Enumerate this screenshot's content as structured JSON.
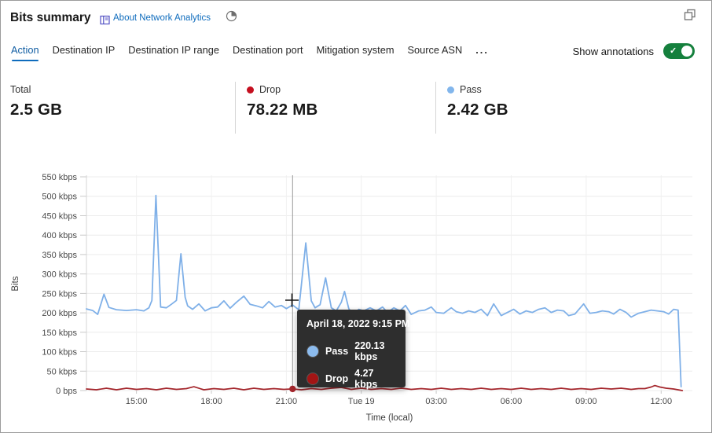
{
  "header": {
    "title": "Bits summary",
    "about_link": "About Network Analytics",
    "icons": [
      "book-icon",
      "time-range-pie-icon",
      "restore-window-icon"
    ]
  },
  "tabs": {
    "items": [
      {
        "label": "Action",
        "active": true
      },
      {
        "label": "Destination IP",
        "active": false
      },
      {
        "label": "Destination IP range",
        "active": false
      },
      {
        "label": "Destination port",
        "active": false
      },
      {
        "label": "Mitigation system",
        "active": false
      },
      {
        "label": "Source ASN",
        "active": false
      }
    ],
    "more_label": "...",
    "show_annotations_label": "Show annotations",
    "show_annotations_on": true,
    "active_color": "#0f6cbd",
    "toggle_color": "#15803d"
  },
  "stats": {
    "cards": [
      {
        "label": "Total",
        "value": "2.5 GB",
        "dot": null
      },
      {
        "label": "Drop",
        "value": "78.22 MB",
        "dot": "#c50f1f"
      },
      {
        "label": "Pass",
        "value": "2.42 GB",
        "dot": "#82b6ec"
      }
    ]
  },
  "tooltip": {
    "title": "April 18, 2022 9:15 PM",
    "rows": [
      {
        "name": "Pass",
        "value": "220.13 kbps",
        "color": "#8cbbee"
      },
      {
        "name": "Drop",
        "value": "4.27 kbps",
        "color": "#a31515"
      }
    ]
  },
  "chart_data": {
    "type": "line",
    "title": "Bits summary",
    "xlabel": "Time (local)",
    "ylabel": "Bits",
    "x_unit": "hours since Apr 18 2022 00:00 local",
    "y_unit": "kbps",
    "xlim": [
      13.0,
      37.25
    ],
    "ylim": [
      0,
      550
    ],
    "grid": true,
    "legend": "shown as stat cards above chart",
    "yticks": [
      {
        "v": 0,
        "label": "0 bps"
      },
      {
        "v": 50,
        "label": "50 kbps"
      },
      {
        "v": 100,
        "label": "100 kbps"
      },
      {
        "v": 150,
        "label": "150 kbps"
      },
      {
        "v": 200,
        "label": "200 kbps"
      },
      {
        "v": 250,
        "label": "250 kbps"
      },
      {
        "v": 300,
        "label": "300 kbps"
      },
      {
        "v": 350,
        "label": "350 kbps"
      },
      {
        "v": 400,
        "label": "400 kbps"
      },
      {
        "v": 450,
        "label": "450 kbps"
      },
      {
        "v": 500,
        "label": "500 kbps"
      },
      {
        "v": 550,
        "label": "550 kbps"
      }
    ],
    "xticks": [
      {
        "t": 15,
        "label": "15:00"
      },
      {
        "t": 18,
        "label": "18:00"
      },
      {
        "t": 21,
        "label": "21:00"
      },
      {
        "t": 24,
        "label": "Tue 19"
      },
      {
        "t": 27,
        "label": "03:00"
      },
      {
        "t": 30,
        "label": "06:00"
      },
      {
        "t": 33,
        "label": "09:00"
      },
      {
        "t": 36,
        "label": "12:00"
      }
    ],
    "selected_point": {
      "t": 21.25,
      "time_label": "April 18, 2022 9:15 PM",
      "pass_kbps": 220.13,
      "drop_kbps": 4.27
    },
    "series": [
      {
        "name": "Pass",
        "color": "#7fb0e8",
        "points": [
          [
            13.0,
            210
          ],
          [
            13.25,
            206
          ],
          [
            13.45,
            196
          ],
          [
            13.7,
            248
          ],
          [
            13.9,
            214
          ],
          [
            14.2,
            208
          ],
          [
            14.6,
            206
          ],
          [
            15.0,
            208
          ],
          [
            15.3,
            205
          ],
          [
            15.5,
            213
          ],
          [
            15.62,
            232
          ],
          [
            15.78,
            502
          ],
          [
            15.97,
            215
          ],
          [
            16.2,
            213
          ],
          [
            16.4,
            222
          ],
          [
            16.6,
            232
          ],
          [
            16.78,
            352
          ],
          [
            16.95,
            240
          ],
          [
            17.05,
            218
          ],
          [
            17.25,
            209
          ],
          [
            17.5,
            223
          ],
          [
            17.75,
            205
          ],
          [
            18.0,
            213
          ],
          [
            18.25,
            215
          ],
          [
            18.5,
            231
          ],
          [
            18.75,
            212
          ],
          [
            19.0,
            227
          ],
          [
            19.3,
            243
          ],
          [
            19.55,
            222
          ],
          [
            19.8,
            218
          ],
          [
            20.05,
            213
          ],
          [
            20.3,
            229
          ],
          [
            20.55,
            215
          ],
          [
            20.8,
            219
          ],
          [
            21.0,
            211
          ],
          [
            21.25,
            220.13
          ],
          [
            21.5,
            208
          ],
          [
            21.78,
            380
          ],
          [
            22.0,
            231
          ],
          [
            22.15,
            213
          ],
          [
            22.35,
            221
          ],
          [
            22.57,
            290
          ],
          [
            22.8,
            213
          ],
          [
            23.0,
            205
          ],
          [
            23.2,
            227
          ],
          [
            23.33,
            255
          ],
          [
            23.5,
            211
          ],
          [
            23.67,
            196
          ],
          [
            23.9,
            209
          ],
          [
            24.1,
            205
          ],
          [
            24.35,
            213
          ],
          [
            24.6,
            205
          ],
          [
            24.85,
            215
          ],
          [
            25.05,
            201
          ],
          [
            25.3,
            213
          ],
          [
            25.55,
            205
          ],
          [
            25.77,
            219
          ],
          [
            26.0,
            196
          ],
          [
            26.3,
            205
          ],
          [
            26.55,
            207
          ],
          [
            26.8,
            215
          ],
          [
            27.0,
            201
          ],
          [
            27.3,
            199
          ],
          [
            27.6,
            213
          ],
          [
            27.8,
            203
          ],
          [
            28.05,
            199
          ],
          [
            28.3,
            205
          ],
          [
            28.55,
            201
          ],
          [
            28.8,
            209
          ],
          [
            29.05,
            193
          ],
          [
            29.3,
            223
          ],
          [
            29.6,
            193
          ],
          [
            29.85,
            201
          ],
          [
            30.1,
            209
          ],
          [
            30.35,
            197
          ],
          [
            30.6,
            205
          ],
          [
            30.85,
            201
          ],
          [
            31.1,
            209
          ],
          [
            31.35,
            213
          ],
          [
            31.6,
            201
          ],
          [
            31.85,
            207
          ],
          [
            32.1,
            205
          ],
          [
            32.3,
            193
          ],
          [
            32.55,
            197
          ],
          [
            32.9,
            223
          ],
          [
            33.15,
            199
          ],
          [
            33.4,
            201
          ],
          [
            33.65,
            205
          ],
          [
            33.9,
            203
          ],
          [
            34.1,
            197
          ],
          [
            34.35,
            209
          ],
          [
            34.6,
            201
          ],
          [
            34.8,
            189
          ],
          [
            35.1,
            199
          ],
          [
            35.35,
            203
          ],
          [
            35.6,
            207
          ],
          [
            35.85,
            205
          ],
          [
            36.1,
            203
          ],
          [
            36.3,
            197
          ],
          [
            36.5,
            209
          ],
          [
            36.68,
            207
          ],
          [
            36.8,
            10
          ]
        ]
      },
      {
        "name": "Drop",
        "color": "#a4262c",
        "points": [
          [
            13.0,
            4
          ],
          [
            13.4,
            2
          ],
          [
            13.8,
            6
          ],
          [
            14.2,
            2
          ],
          [
            14.6,
            6
          ],
          [
            15.0,
            3
          ],
          [
            15.4,
            5
          ],
          [
            15.8,
            2
          ],
          [
            16.2,
            6
          ],
          [
            16.6,
            3
          ],
          [
            17.0,
            5
          ],
          [
            17.3,
            10
          ],
          [
            17.7,
            2
          ],
          [
            18.1,
            5
          ],
          [
            18.5,
            3
          ],
          [
            18.9,
            6
          ],
          [
            19.3,
            2
          ],
          [
            19.7,
            6
          ],
          [
            20.1,
            3
          ],
          [
            20.5,
            5
          ],
          [
            20.9,
            3
          ],
          [
            21.25,
            4.27
          ],
          [
            21.6,
            2
          ],
          [
            22.0,
            5
          ],
          [
            22.4,
            3
          ],
          [
            22.8,
            6
          ],
          [
            23.2,
            8
          ],
          [
            23.6,
            3
          ],
          [
            24.0,
            6
          ],
          [
            24.4,
            3
          ],
          [
            24.8,
            5
          ],
          [
            25.2,
            3
          ],
          [
            25.6,
            6
          ],
          [
            26.0,
            3
          ],
          [
            26.4,
            5
          ],
          [
            26.8,
            3
          ],
          [
            27.2,
            6
          ],
          [
            27.6,
            3
          ],
          [
            28.0,
            5
          ],
          [
            28.4,
            3
          ],
          [
            28.8,
            6
          ],
          [
            29.2,
            3
          ],
          [
            29.6,
            5
          ],
          [
            30.0,
            3
          ],
          [
            30.4,
            6
          ],
          [
            30.8,
            3
          ],
          [
            31.2,
            5
          ],
          [
            31.6,
            3
          ],
          [
            32.0,
            6
          ],
          [
            32.4,
            3
          ],
          [
            32.8,
            5
          ],
          [
            33.2,
            3
          ],
          [
            33.6,
            6
          ],
          [
            34.0,
            4
          ],
          [
            34.4,
            6
          ],
          [
            34.8,
            3
          ],
          [
            35.1,
            5
          ],
          [
            35.35,
            5
          ],
          [
            35.6,
            9
          ],
          [
            35.75,
            13
          ],
          [
            35.95,
            9
          ],
          [
            36.2,
            6
          ],
          [
            36.5,
            4
          ],
          [
            36.85,
            0
          ]
        ]
      }
    ]
  }
}
